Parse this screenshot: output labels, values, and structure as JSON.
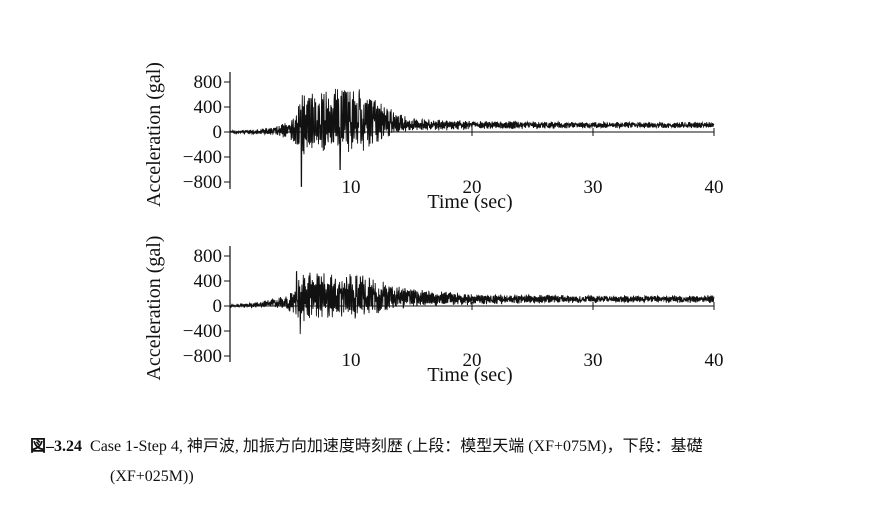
{
  "chart_data": [
    {
      "type": "line",
      "panel": "top",
      "title": "",
      "xlabel": "Time (sec)",
      "ylabel": "Acceleration (gal)",
      "xlim": [
        0,
        40
      ],
      "ylim": [
        -900,
        900
      ],
      "xticks": [
        10,
        20,
        30,
        40
      ],
      "yticks": [
        800,
        400,
        0,
        -400,
        -800
      ],
      "yticklabels": [
        "800",
        "400",
        "0",
        "−400",
        "−800"
      ],
      "baseline": 0,
      "grid": false,
      "legend": "none",
      "series_envelope": {
        "t": [
          0,
          2,
          4,
          5,
          5.5,
          6,
          7,
          8,
          9,
          10,
          11,
          12,
          13,
          14,
          15,
          17,
          20,
          25,
          30,
          35,
          40
        ],
        "mean": [
          0,
          0,
          20,
          30,
          60,
          120,
          150,
          170,
          190,
          200,
          200,
          180,
          150,
          130,
          120,
          110,
          110,
          110,
          110,
          110,
          110
        ],
        "amplitude": [
          20,
          40,
          80,
          150,
          350,
          500,
          500,
          450,
          520,
          550,
          500,
          400,
          250,
          150,
          100,
          90,
          70,
          60,
          50,
          50,
          50
        ]
      },
      "peaks": [
        {
          "t": 5.9,
          "value": -870
        },
        {
          "t": 10.2,
          "value": 650
        },
        {
          "t": 9.1,
          "value": -600
        }
      ]
    },
    {
      "type": "line",
      "panel": "bottom",
      "title": "",
      "xlabel": "Time (sec)",
      "ylabel": "Acceleration (gal)",
      "xlim": [
        0,
        40
      ],
      "ylim": [
        -900,
        900
      ],
      "xticks": [
        10,
        20,
        30,
        40
      ],
      "yticks": [
        800,
        400,
        0,
        -400,
        -800
      ],
      "yticklabels": [
        "800",
        "400",
        "0",
        "−400",
        "−800"
      ],
      "baseline": 0,
      "grid": false,
      "legend": "none",
      "series_envelope": {
        "t": [
          0,
          2,
          4,
          5,
          5.5,
          6,
          7,
          8,
          9,
          10,
          11,
          12,
          13,
          14,
          15,
          17,
          20,
          25,
          30,
          35,
          40
        ],
        "mean": [
          0,
          20,
          50,
          60,
          80,
          120,
          150,
          160,
          170,
          170,
          170,
          160,
          150,
          140,
          130,
          120,
          110,
          110,
          110,
          110,
          110
        ],
        "amplitude": [
          20,
          40,
          80,
          150,
          300,
          400,
          380,
          350,
          380,
          370,
          350,
          280,
          230,
          180,
          150,
          120,
          90,
          70,
          60,
          60,
          60
        ]
      },
      "peaks": [
        {
          "t": 5.5,
          "value": 550
        },
        {
          "t": 5.8,
          "value": -450
        },
        {
          "t": 7.2,
          "value": 520
        }
      ]
    }
  ],
  "caption": {
    "number": "図–3.24",
    "line1": "Case 1-Step 4, 神戸波, 加振方向加速度時刻歴 (上段：模型天端 (XF+075M)，下段：基礎",
    "line2": "(XF+025M))"
  }
}
